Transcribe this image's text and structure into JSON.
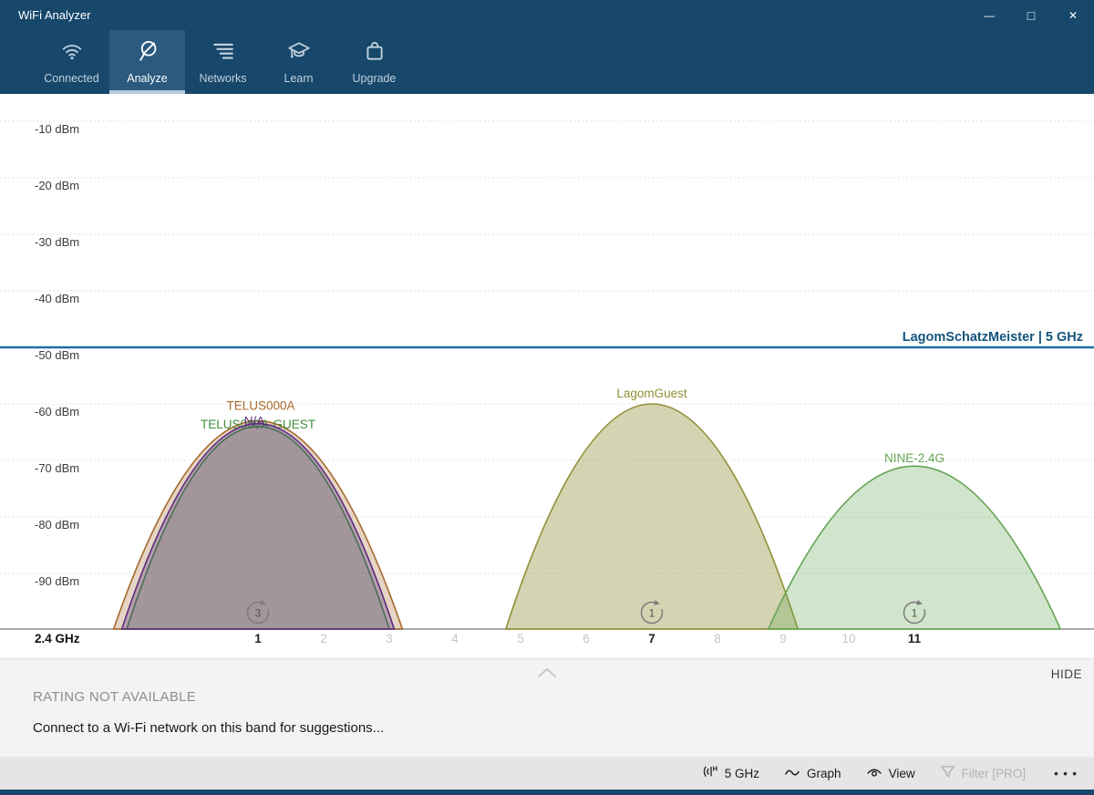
{
  "window": {
    "title": "WiFi Analyzer",
    "controls": {
      "minimize": "—",
      "maximize": "□",
      "close": "✕"
    }
  },
  "nav": {
    "tabs": [
      {
        "label": "Connected",
        "icon": "wifi-icon",
        "selected": false
      },
      {
        "label": "Analyze",
        "icon": "magnifier-slash-icon",
        "selected": true
      },
      {
        "label": "Networks",
        "icon": "network-list-icon",
        "selected": false
      },
      {
        "label": "Learn",
        "icon": "graduation-cap-icon",
        "selected": false
      },
      {
        "label": "Upgrade",
        "icon": "shopping-bag-icon",
        "selected": false
      }
    ]
  },
  "chart_data": {
    "type": "area",
    "band_label": "2.4 GHz",
    "y_tick_labels": [
      "-10 dBm",
      "-20 dBm",
      "-30 dBm",
      "-40 dBm",
      "-50 dBm",
      "-60 dBm",
      "-70 dBm",
      "-80 dBm",
      "-90 dBm"
    ],
    "y_tick_values": [
      -10,
      -20,
      -30,
      -40,
      -50,
      -60,
      -70,
      -80,
      -90
    ],
    "x_tick_labels": [
      "1",
      "2",
      "3",
      "4",
      "5",
      "6",
      "7",
      "8",
      "9",
      "10",
      "11"
    ],
    "active_channels": [
      1,
      7,
      11
    ],
    "grid": "dotted-horizontal",
    "networks": [
      {
        "ssid": "TELUS000A",
        "channel": 1,
        "signal_dbm": -63,
        "width_channels": 4.4,
        "color": "#a5682a",
        "fill_opacity": 0.28,
        "label_offset": [
          3,
          -12
        ]
      },
      {
        "ssid": "TELUS000A-GUEST",
        "channel": 1,
        "signal_dbm": -64,
        "width_channels": 4.0,
        "color": "#3f8f3f",
        "fill_opacity": 0.2,
        "label_offset": [
          0,
          2
        ]
      },
      {
        "ssid": "N/A",
        "channel": 1,
        "signal_dbm": -63.5,
        "width_channels": 4.15,
        "color": "#5b2d80",
        "fill_opacity": 0.32,
        "label_offset": [
          -4,
          2
        ]
      },
      {
        "ssid": "LagomGuest",
        "channel": 7,
        "signal_dbm": -60,
        "width_channels": 4.45,
        "color": "#8f8f35",
        "fill_opacity": 0.38,
        "label_offset": [
          0,
          -7
        ]
      },
      {
        "ssid": "NINE-2.4G",
        "channel": 11,
        "signal_dbm": -71,
        "width_channels": 4.45,
        "color": "#66a455",
        "fill_opacity": 0.3,
        "label_offset": [
          0,
          -4
        ]
      }
    ],
    "group_badges": [
      {
        "channel": 1,
        "count": "3"
      },
      {
        "channel": 7,
        "count": "1"
      },
      {
        "channel": 11,
        "count": "1"
      }
    ],
    "reference_line": {
      "label": "LagomSchatzMeister | 5 GHz",
      "signal_dbm": -50,
      "color": "#1f6ea6",
      "label_color": "#14557e"
    }
  },
  "suggestions_panel": {
    "hide_label": "HIDE",
    "status": "RATING NOT AVAILABLE",
    "message": "Connect to a Wi-Fi network on this band for suggestions..."
  },
  "status_bar": {
    "items": [
      {
        "label": "5 GHz",
        "icon": "frequency-icon",
        "disabled": false
      },
      {
        "label": "Graph",
        "icon": "graph-icon",
        "disabled": false
      },
      {
        "label": "View",
        "icon": "view-icon",
        "disabled": false
      },
      {
        "label": "Filter [PRO]",
        "icon": "filter-icon",
        "disabled": true
      }
    ],
    "more_glyph": "• • •"
  }
}
